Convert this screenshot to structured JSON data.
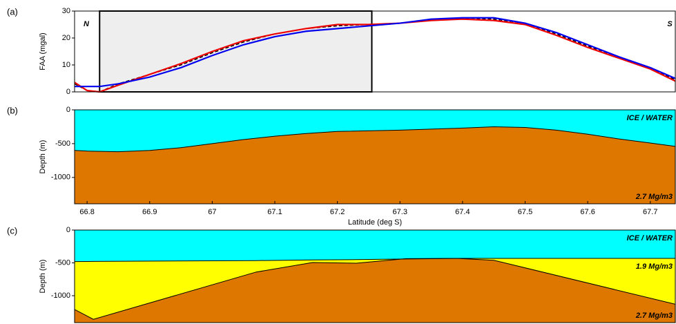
{
  "chart_data": [
    {
      "type": "line",
      "panel_label": "(a)",
      "ylabel": "FAA (mgal)",
      "x": [
        66.78,
        66.8,
        66.82,
        66.85,
        66.9,
        66.95,
        67.0,
        67.05,
        67.1,
        67.15,
        67.2,
        67.25,
        67.3,
        67.35,
        67.4,
        67.45,
        67.5,
        67.55,
        67.6,
        67.65,
        67.7,
        67.74
      ],
      "xlim": [
        66.78,
        67.74
      ],
      "ylim": [
        0,
        30
      ],
      "yticks": [
        0,
        10,
        20,
        30
      ],
      "shaded_region": [
        66.82,
        67.255
      ],
      "shaded_color": "#eeeeee",
      "annotations": [
        "N",
        "S"
      ],
      "series": [
        {
          "color": "#000000",
          "dashed": true,
          "values": [
            3,
            0.5,
            0,
            3,
            6.5,
            10,
            14.5,
            18.5,
            21.5,
            23.5,
            24.5,
            25,
            25.5,
            26.5,
            27.5,
            27,
            25.5,
            21.5,
            17,
            13,
            9,
            4.5
          ]
        },
        {
          "color": "#ee0000",
          "dashed": false,
          "values": [
            3.5,
            0.5,
            0,
            2.5,
            6.5,
            10.5,
            15,
            19,
            21.5,
            23.5,
            25,
            25,
            25.5,
            26.5,
            27,
            26.5,
            25,
            21,
            16.5,
            12.5,
            8.5,
            4
          ]
        },
        {
          "color": "#0000ee",
          "dashed": false,
          "values": [
            2,
            2,
            2,
            3,
            5.5,
            9,
            13.5,
            17.5,
            20.5,
            22.5,
            23.5,
            24.5,
            25.5,
            27,
            27.5,
            27.5,
            25.5,
            22,
            17.5,
            13,
            9,
            5
          ]
        }
      ]
    },
    {
      "type": "layers",
      "panel_label": "(b)",
      "ylabel": "Depth (m)",
      "xlabel": "Latitude (deg S)",
      "x": [
        66.78,
        66.8,
        66.85,
        66.9,
        66.95,
        67.0,
        67.05,
        67.1,
        67.15,
        67.2,
        67.3,
        67.4,
        67.45,
        67.5,
        67.55,
        67.6,
        67.65,
        67.7,
        67.74
      ],
      "xlim": [
        66.78,
        67.74
      ],
      "xticks": [
        66.8,
        66.9,
        67,
        67.1,
        67.2,
        67.3,
        67.4,
        67.5,
        67.6,
        67.7
      ],
      "ylim": [
        -1390,
        0
      ],
      "yticks": [
        0,
        -500,
        -1000
      ],
      "layers": [
        {
          "label": "ICE / WATER",
          "color": "#00ffff"
        },
        {
          "label": "2.7 Mg/m3",
          "color": "#dd7700"
        }
      ],
      "series": [
        {
          "color": "#000000",
          "values": [
            -600,
            -610,
            -620,
            -600,
            -560,
            -500,
            -440,
            -390,
            -350,
            -320,
            -300,
            -270,
            -250,
            -260,
            -300,
            -360,
            -430,
            -490,
            -540
          ]
        }
      ]
    },
    {
      "type": "layers",
      "panel_label": "(c)",
      "ylabel": "Depth (m)",
      "x": [
        66.78,
        66.81,
        67.07,
        67.16,
        67.23,
        67.31,
        67.39,
        67.45,
        67.74
      ],
      "xlim": [
        66.78,
        67.74
      ],
      "ylim": [
        -1410,
        0
      ],
      "yticks": [
        0,
        -500,
        -1000
      ],
      "layers": [
        {
          "label": "ICE / WATER",
          "color": "#00ffff"
        },
        {
          "label": "1.9 Mg/m3",
          "color": "#ffff00"
        },
        {
          "label": "2.7 Mg/m3",
          "color": "#dd7700"
        }
      ],
      "series": [
        {
          "color": "#000000",
          "values": [
            -480,
            -478,
            -465,
            -455,
            -450,
            -440,
            -432,
            -432,
            -432
          ]
        },
        {
          "color": "#000000",
          "values": [
            -1210,
            -1360,
            -640,
            -495,
            -505,
            -435,
            -432,
            -460,
            -1130
          ]
        }
      ]
    }
  ]
}
